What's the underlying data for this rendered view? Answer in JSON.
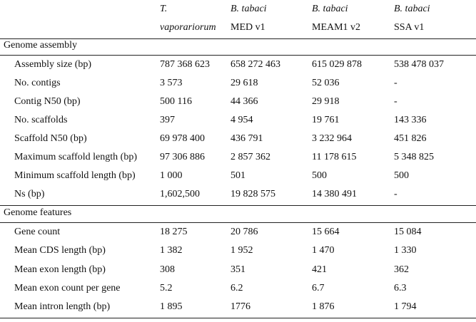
{
  "header": {
    "col1": {
      "line1": "T.",
      "line2": "vaporariorum"
    },
    "col2": {
      "line1": "B. tabaci",
      "line2": "MED v1"
    },
    "col3": {
      "line1": "B. tabaci",
      "line2": "MEAM1 v2"
    },
    "col4": {
      "line1": "B. tabaci",
      "line2": "SSA v1"
    }
  },
  "sections": {
    "assembly": "Genome assembly",
    "features": "Genome features"
  },
  "assembly_rows": [
    [
      "Assembly size (bp)",
      "787 368 623",
      "658 272 463",
      "615 029 878",
      "538 478 037"
    ],
    [
      "No. contigs",
      "3 573",
      "29 618",
      "52 036",
      "-"
    ],
    [
      "Contig N50 (bp)",
      "500 116",
      "44 366",
      "29 918",
      "-"
    ],
    [
      "No. scaffolds",
      "397",
      "4 954",
      "19 761",
      "143 336"
    ],
    [
      "Scaffold N50 (bp)",
      "69 978 400",
      "436 791",
      "3 232 964",
      "451 826"
    ],
    [
      "Maximum scaffold length (bp)",
      "97 306 886",
      "2 857 362",
      "11 178 615",
      "5 348 825"
    ],
    [
      "Minimum scaffold length (bp)",
      "1 000",
      "501",
      "500",
      "500"
    ],
    [
      "Ns (bp)",
      "1,602,500",
      "19 828 575",
      "14 380 491",
      "-"
    ]
  ],
  "feature_rows": [
    [
      "Gene count",
      "18 275",
      "20 786",
      "15 664",
      "15 084"
    ],
    [
      "Mean CDS length (bp)",
      "1 382",
      "1 952",
      "1 470",
      "1 330"
    ],
    [
      "Mean exon length (bp)",
      "308",
      "351",
      "421",
      "362"
    ],
    [
      "Mean exon count per gene",
      "5.2",
      "6.2",
      "6.7",
      "6.3"
    ],
    [
      "Mean intron length (bp)",
      "1 895",
      "1776",
      "1 876",
      "1 794"
    ]
  ]
}
